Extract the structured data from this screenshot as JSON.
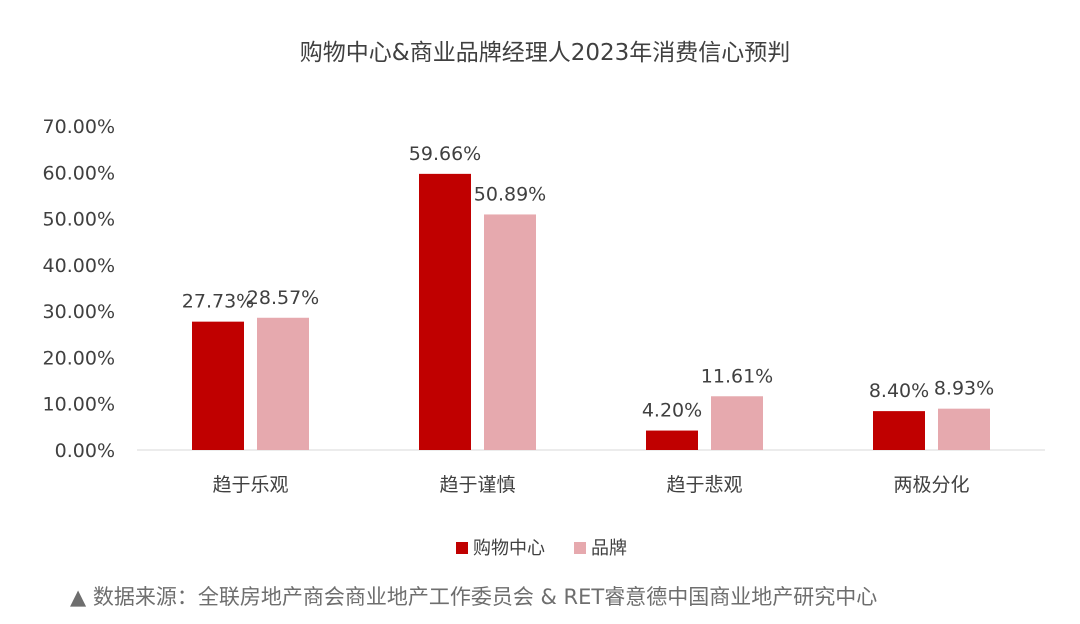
{
  "chart_data": {
    "type": "bar",
    "title": "购物中心&商业品牌经理人2023年消费信心预判",
    "categories": [
      "趋于乐观",
      "趋于谨慎",
      "趋于悲观",
      "两极分化"
    ],
    "series": [
      {
        "name": "购物中心",
        "color": "#C00000",
        "values": [
          27.73,
          59.66,
          4.2,
          8.4
        ],
        "labels": [
          "27.73%",
          "59.66%",
          "4.20%",
          "8.40%"
        ]
      },
      {
        "name": "品牌",
        "color": "#E6A9AE",
        "values": [
          28.57,
          50.89,
          11.61,
          8.93
        ],
        "labels": [
          "28.57%",
          "50.89%",
          "11.61%",
          "8.93%"
        ]
      }
    ],
    "ylim": [
      0,
      70
    ],
    "yticks": [
      "0.00%",
      "10.00%",
      "20.00%",
      "30.00%",
      "40.00%",
      "50.00%",
      "60.00%",
      "70.00%"
    ],
    "xlabel": "",
    "ylabel": "",
    "grid": false,
    "legend": "bottom"
  },
  "footnote": "▲ 数据来源：全联房地产商会商业地产工作委员会 & RET睿意德中国商业地产研究中心"
}
